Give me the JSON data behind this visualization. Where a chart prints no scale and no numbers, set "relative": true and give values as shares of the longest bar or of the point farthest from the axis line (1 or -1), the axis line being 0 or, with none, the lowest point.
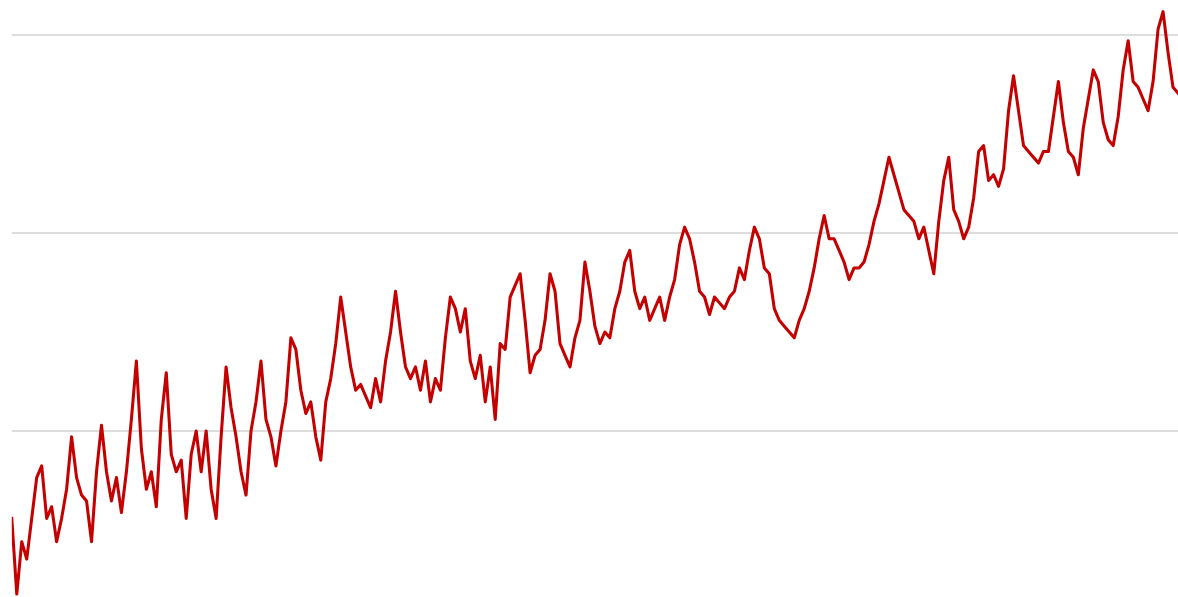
{
  "chart_data": {
    "type": "line",
    "relative": true,
    "tick_labels": false,
    "ref_lines": [
      {
        "axis": "y",
        "value": 0.28,
        "color": "#dddddd"
      },
      {
        "axis": "y",
        "value": 0.62,
        "color": "#dddddd"
      },
      {
        "axis": "y",
        "value": 0.96,
        "color": "#dddddd"
      }
    ],
    "categories": [
      null,
      null,
      null,
      null,
      null,
      null,
      null,
      null,
      null,
      null,
      null,
      null,
      null,
      null,
      null,
      null,
      null,
      null,
      null,
      null,
      null,
      null,
      null,
      null,
      null,
      null,
      null,
      null,
      null,
      null,
      null,
      null,
      null,
      null,
      null,
      null,
      null,
      null,
      null,
      null,
      null,
      null,
      null,
      null,
      null,
      null,
      null,
      null,
      null,
      null,
      null,
      null,
      null,
      null,
      null,
      null,
      null,
      null,
      null,
      null,
      null,
      null,
      null,
      null,
      null,
      null,
      null,
      null,
      null,
      null,
      null,
      null,
      null,
      null,
      null,
      null,
      null,
      null,
      null,
      null,
      null,
      null,
      null,
      null,
      null,
      null,
      null,
      null,
      null,
      null,
      null,
      null,
      null,
      null,
      null,
      null,
      null,
      null,
      null,
      null,
      null,
      null,
      null,
      null,
      null,
      null,
      null,
      null,
      null,
      null,
      null,
      null,
      null,
      null,
      null,
      null,
      null,
      null,
      null,
      null,
      null,
      null,
      null,
      null,
      null,
      null,
      null,
      null,
      null,
      null,
      null,
      null,
      null,
      null,
      null,
      null,
      null,
      null,
      null,
      null,
      null,
      null,
      null,
      null,
      null,
      null,
      null,
      null,
      null,
      null,
      null,
      null,
      null,
      null,
      null,
      null,
      null,
      null,
      null,
      null,
      null,
      null,
      null,
      null,
      null,
      null,
      null,
      null,
      null,
      null,
      null,
      null,
      null,
      null,
      null,
      null,
      null,
      null,
      null,
      null,
      null,
      null,
      null,
      null,
      null,
      null,
      null,
      null,
      null,
      null,
      null,
      null,
      null,
      null,
      null,
      null,
      null,
      null,
      null,
      null,
      null,
      null,
      null,
      null,
      null,
      null,
      null,
      null,
      null,
      null,
      null,
      null,
      null,
      null,
      null,
      null,
      null,
      null,
      null,
      null,
      null,
      null,
      null,
      null,
      null,
      null,
      null,
      null,
      null,
      null,
      null,
      null,
      null,
      null,
      null
    ],
    "series": [
      {
        "color": "#c40000",
        "values": [
          0.13,
          0,
          0.09,
          0.06,
          0.13,
          0.2,
          0.22,
          0.13,
          0.15,
          0.09,
          0.13,
          0.18,
          0.27,
          0.2,
          0.17,
          0.16,
          0.09,
          0.21,
          0.29,
          0.21,
          0.16,
          0.2,
          0.14,
          0.21,
          0.3,
          0.4,
          0.25,
          0.18,
          0.21,
          0.15,
          0.3,
          0.38,
          0.24,
          0.21,
          0.23,
          0.13,
          0.24,
          0.28,
          0.21,
          0.28,
          0.18,
          0.13,
          0.27,
          0.39,
          0.32,
          0.27,
          0.21,
          0.17,
          0.28,
          0.33,
          0.4,
          0.3,
          0.27,
          0.22,
          0.28,
          0.33,
          0.44,
          0.42,
          0.35,
          0.31,
          0.33,
          0.27,
          0.23,
          0.33,
          0.37,
          0.43,
          0.51,
          0.45,
          0.39,
          0.35,
          0.36,
          0.34,
          0.32,
          0.37,
          0.33,
          0.4,
          0.45,
          0.52,
          0.45,
          0.39,
          0.37,
          0.39,
          0.35,
          0.4,
          0.33,
          0.37,
          0.35,
          0.44,
          0.51,
          0.49,
          0.45,
          0.49,
          0.4,
          0.37,
          0.41,
          0.33,
          0.39,
          0.3,
          0.43,
          0.42,
          0.51,
          0.53,
          0.55,
          0.47,
          0.38,
          0.41,
          0.42,
          0.47,
          0.55,
          0.52,
          0.43,
          0.41,
          0.39,
          0.44,
          0.47,
          0.57,
          0.52,
          0.46,
          0.43,
          0.45,
          0.44,
          0.49,
          0.52,
          0.57,
          0.59,
          0.52,
          0.49,
          0.51,
          0.47,
          0.49,
          0.51,
          0.47,
          0.51,
          0.54,
          0.6,
          0.63,
          0.61,
          0.57,
          0.52,
          0.51,
          0.48,
          0.51,
          0.5,
          0.49,
          0.51,
          0.52,
          0.56,
          0.54,
          0.59,
          0.63,
          0.61,
          0.56,
          0.55,
          0.49,
          0.47,
          0.46,
          0.45,
          0.44,
          0.47,
          0.49,
          0.52,
          0.56,
          0.61,
          0.65,
          0.61,
          0.61,
          0.59,
          0.57,
          0.54,
          0.56,
          0.56,
          0.57,
          0.6,
          0.64,
          0.67,
          0.71,
          0.75,
          0.72,
          0.69,
          0.66,
          0.65,
          0.64,
          0.61,
          0.63,
          0.59,
          0.55,
          0.64,
          0.71,
          0.75,
          0.66,
          0.64,
          0.61,
          0.63,
          0.68,
          0.76,
          0.77,
          0.71,
          0.72,
          0.7,
          0.73,
          0.83,
          0.89,
          0.83,
          0.77,
          0.76,
          0.75,
          0.74,
          0.76,
          0.76,
          0.82,
          0.88,
          0.81,
          0.76,
          0.75,
          0.72,
          0.8,
          0.85,
          0.9,
          0.88,
          0.81,
          0.78,
          0.77,
          0.82,
          0.9,
          0.95,
          0.88,
          0.87,
          0.85,
          0.83,
          0.88,
          0.97,
          1,
          0.93,
          0.87,
          0.86
        ]
      }
    ]
  }
}
